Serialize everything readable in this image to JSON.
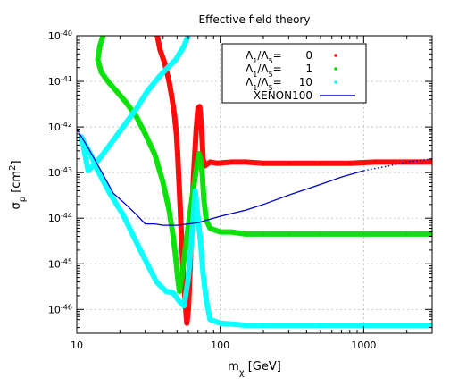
{
  "chart_data": {
    "type": "scatter",
    "title": "Effective field theory",
    "xlabel": {
      "main": "m",
      "sub": "χ",
      "unit": " [GeV]"
    },
    "ylabel": {
      "main": "σ",
      "sub": "p",
      "unit": " [cm",
      "sup": "2",
      "close": "]"
    },
    "xscale": "log",
    "yscale": "log",
    "xlim": [
      10,
      3000
    ],
    "ylim": [
      3e-47,
      1e-40
    ],
    "grid": true,
    "legend_position": "top-right",
    "x_ticks": [
      {
        "value": 10,
        "label": "10"
      },
      {
        "value": 100,
        "label": "100"
      },
      {
        "value": 1000,
        "label": "1000"
      }
    ],
    "y_ticks": [
      {
        "value": 1e-40,
        "base": "10",
        "exp": "-40"
      },
      {
        "value": 1e-41,
        "base": "10",
        "exp": "-41"
      },
      {
        "value": 1e-42,
        "base": "10",
        "exp": "-42"
      },
      {
        "value": 1e-43,
        "base": "10",
        "exp": "-43"
      },
      {
        "value": 1e-44,
        "base": "10",
        "exp": "-44"
      },
      {
        "value": 1e-45,
        "base": "10",
        "exp": "-45"
      },
      {
        "value": 1e-46,
        "base": "10",
        "exp": "-46"
      }
    ],
    "series": [
      {
        "name": "Λ1/Λ5= 0",
        "label_value": "0",
        "color": "#ff0000",
        "style": "band",
        "points": [
          [
            36,
            1.2e-40
          ],
          [
            38,
            5e-41
          ],
          [
            41,
            2.5e-41
          ],
          [
            44,
            1e-41
          ],
          [
            46,
            4.5e-42
          ],
          [
            48,
            1.8e-42
          ],
          [
            49.5,
            7e-43
          ],
          [
            50.5,
            2.5e-43
          ],
          [
            51.5,
            7e-44
          ],
          [
            52.5,
            2e-44
          ],
          [
            53.5,
            5e-45
          ],
          [
            54.5,
            1.5e-45
          ],
          [
            55.5,
            4.5e-46
          ],
          [
            57,
            1.5e-46
          ],
          [
            58.5,
            5e-47
          ],
          [
            60,
            1e-46
          ],
          [
            61,
            3.5e-46
          ],
          [
            62,
            1.3e-45
          ],
          [
            63,
            5e-45
          ],
          [
            64,
            2e-44
          ],
          [
            65,
            7e-44
          ],
          [
            66.5,
            2.5e-43
          ],
          [
            68,
            9e-43
          ],
          [
            70,
            2.6e-42
          ],
          [
            72,
            2.8e-42
          ],
          [
            74,
            1e-42
          ],
          [
            76,
            2e-43
          ],
          [
            78,
            1.4e-43
          ],
          [
            85,
            1.7e-43
          ],
          [
            95,
            1.6e-43
          ],
          [
            120,
            1.7e-43
          ],
          [
            150,
            1.7e-43
          ],
          [
            200,
            1.6e-43
          ],
          [
            300,
            1.6e-43
          ],
          [
            500,
            1.6e-43
          ],
          [
            800,
            1.6e-43
          ],
          [
            1200,
            1.7e-43
          ],
          [
            2000,
            1.7e-43
          ],
          [
            3000,
            1.7e-43
          ]
        ]
      },
      {
        "name": "Λ1/Λ5= 1",
        "label_value": "1",
        "color": "#00e000",
        "style": "band",
        "points": [
          [
            15.5,
            1.2e-40
          ],
          [
            14.5,
            6e-41
          ],
          [
            14,
            3e-41
          ],
          [
            14.8,
            1.6e-41
          ],
          [
            16.5,
            1e-41
          ],
          [
            19,
            6e-42
          ],
          [
            22,
            3.5e-42
          ],
          [
            26,
            1.7e-42
          ],
          [
            30,
            7e-43
          ],
          [
            35,
            2.5e-43
          ],
          [
            40,
            6e-44
          ],
          [
            44,
            1.5e-44
          ],
          [
            47,
            4e-45
          ],
          [
            49,
            1.3e-45
          ],
          [
            50.5,
            5e-46
          ],
          [
            52,
            2.5e-46
          ],
          [
            54,
            5e-46
          ],
          [
            57,
            2e-45
          ],
          [
            60,
            7e-45
          ],
          [
            63,
            2.2e-44
          ],
          [
            66,
            6e-44
          ],
          [
            69,
            1.6e-43
          ],
          [
            71,
            2.6e-43
          ],
          [
            73,
            2e-43
          ],
          [
            75,
            9e-44
          ],
          [
            77,
            2.5e-44
          ],
          [
            80,
            9e-45
          ],
          [
            85,
            6e-45
          ],
          [
            100,
            5e-45
          ],
          [
            120,
            5e-45
          ],
          [
            150,
            4.5e-45
          ],
          [
            200,
            4.5e-45
          ],
          [
            300,
            4.5e-45
          ],
          [
            500,
            4.5e-45
          ],
          [
            1000,
            4.5e-45
          ],
          [
            2000,
            4.5e-45
          ],
          [
            3000,
            4.5e-45
          ]
        ]
      },
      {
        "name": "Λ1/Λ5= 10",
        "label_value": "10",
        "color": "#00ffff",
        "style": "band",
        "points": [
          [
            61,
            1.2e-40
          ],
          [
            56,
            6e-41
          ],
          [
            49,
            3e-41
          ],
          [
            43,
            2e-41
          ],
          [
            37,
            1.2e-41
          ],
          [
            31,
            6e-42
          ],
          [
            26,
            2.5e-42
          ],
          [
            21,
            1e-42
          ],
          [
            17,
            4e-43
          ],
          [
            14,
            1.8e-43
          ],
          [
            12,
            1.1e-43
          ],
          [
            10.8,
            6e-43
          ],
          [
            11.5,
            4e-43
          ],
          [
            12.5,
            2.5e-43
          ],
          [
            14,
            1.1e-43
          ],
          [
            17,
            3.5e-44
          ],
          [
            21,
            1.2e-44
          ],
          [
            26,
            3e-45
          ],
          [
            31,
            1e-45
          ],
          [
            36,
            4e-46
          ],
          [
            42,
            2.5e-46
          ],
          [
            47,
            2.3e-46
          ],
          [
            52,
            1.5e-46
          ],
          [
            56,
            1.2e-46
          ],
          [
            60,
            5e-46
          ],
          [
            64,
            6e-45
          ],
          [
            67,
            4e-44
          ],
          [
            70,
            1e-44
          ],
          [
            73,
            3e-45
          ],
          [
            76,
            6e-46
          ],
          [
            80,
            1.6e-46
          ],
          [
            85,
            6e-47
          ],
          [
            100,
            5e-47
          ],
          [
            150,
            4.5e-47
          ],
          [
            200,
            4.5e-47
          ],
          [
            500,
            4.5e-47
          ],
          [
            1000,
            4.5e-47
          ],
          [
            3000,
            4.5e-47
          ]
        ]
      },
      {
        "name": "XENON100",
        "color": "#0000c8",
        "style": "line",
        "points": [
          [
            10,
            9e-43
          ],
          [
            12,
            3.5e-43
          ],
          [
            15,
            1e-43
          ],
          [
            18,
            3.5e-44
          ],
          [
            22,
            2e-44
          ],
          [
            26,
            1.2e-44
          ],
          [
            30,
            7.5e-45
          ],
          [
            35,
            7.5e-45
          ],
          [
            40,
            7e-45
          ],
          [
            45,
            7e-45
          ],
          [
            50,
            7e-45
          ],
          [
            60,
            7.5e-45
          ],
          [
            70,
            8e-45
          ],
          [
            80,
            9e-45
          ],
          [
            100,
            1.1e-44
          ],
          [
            150,
            1.5e-44
          ],
          [
            200,
            2e-44
          ],
          [
            300,
            3.2e-44
          ],
          [
            500,
            5.5e-44
          ],
          [
            700,
            8e-44
          ],
          [
            1000,
            1.1e-43
          ]
        ],
        "extrapolated": [
          [
            1000,
            1.1e-43
          ],
          [
            1500,
            1.4e-43
          ],
          [
            2000,
            1.7e-43
          ],
          [
            3000,
            2e-43
          ]
        ]
      }
    ],
    "legend": {
      "prefix": {
        "l1": "Λ",
        "s1": "1",
        "slash": "/",
        "l5": "Λ",
        "s5": "5",
        "eq": "="
      },
      "xenon_label": "XENON100"
    }
  }
}
